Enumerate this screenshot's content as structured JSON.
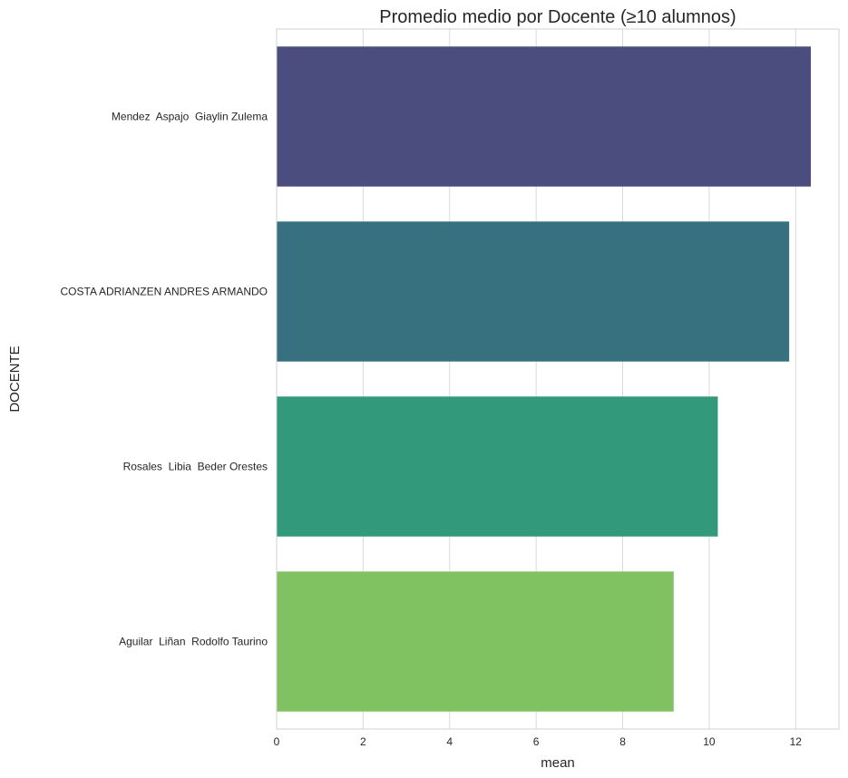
{
  "chart_data": {
    "type": "bar",
    "orientation": "horizontal",
    "title": "Promedio medio por Docente (≥10 alumnos)",
    "xlabel": "mean",
    "ylabel": "DOCENTE",
    "categories": [
      "Mendez  Aspajo  Giaylin Zulema",
      "COSTA ADRIANZEN ANDRES ARMANDO",
      "Rosales  Libia  Beder Orestes",
      "Aguilar  Liñan  Rodolfo Taurino"
    ],
    "values": [
      12.35,
      11.85,
      10.2,
      9.18
    ],
    "colors": [
      "#4a4d7d",
      "#37717f",
      "#33997b",
      "#80c262"
    ],
    "xlim": [
      0,
      13.0
    ],
    "xticks": [
      0,
      2,
      4,
      6,
      8,
      10,
      12
    ],
    "grid": true,
    "legend": "none"
  }
}
